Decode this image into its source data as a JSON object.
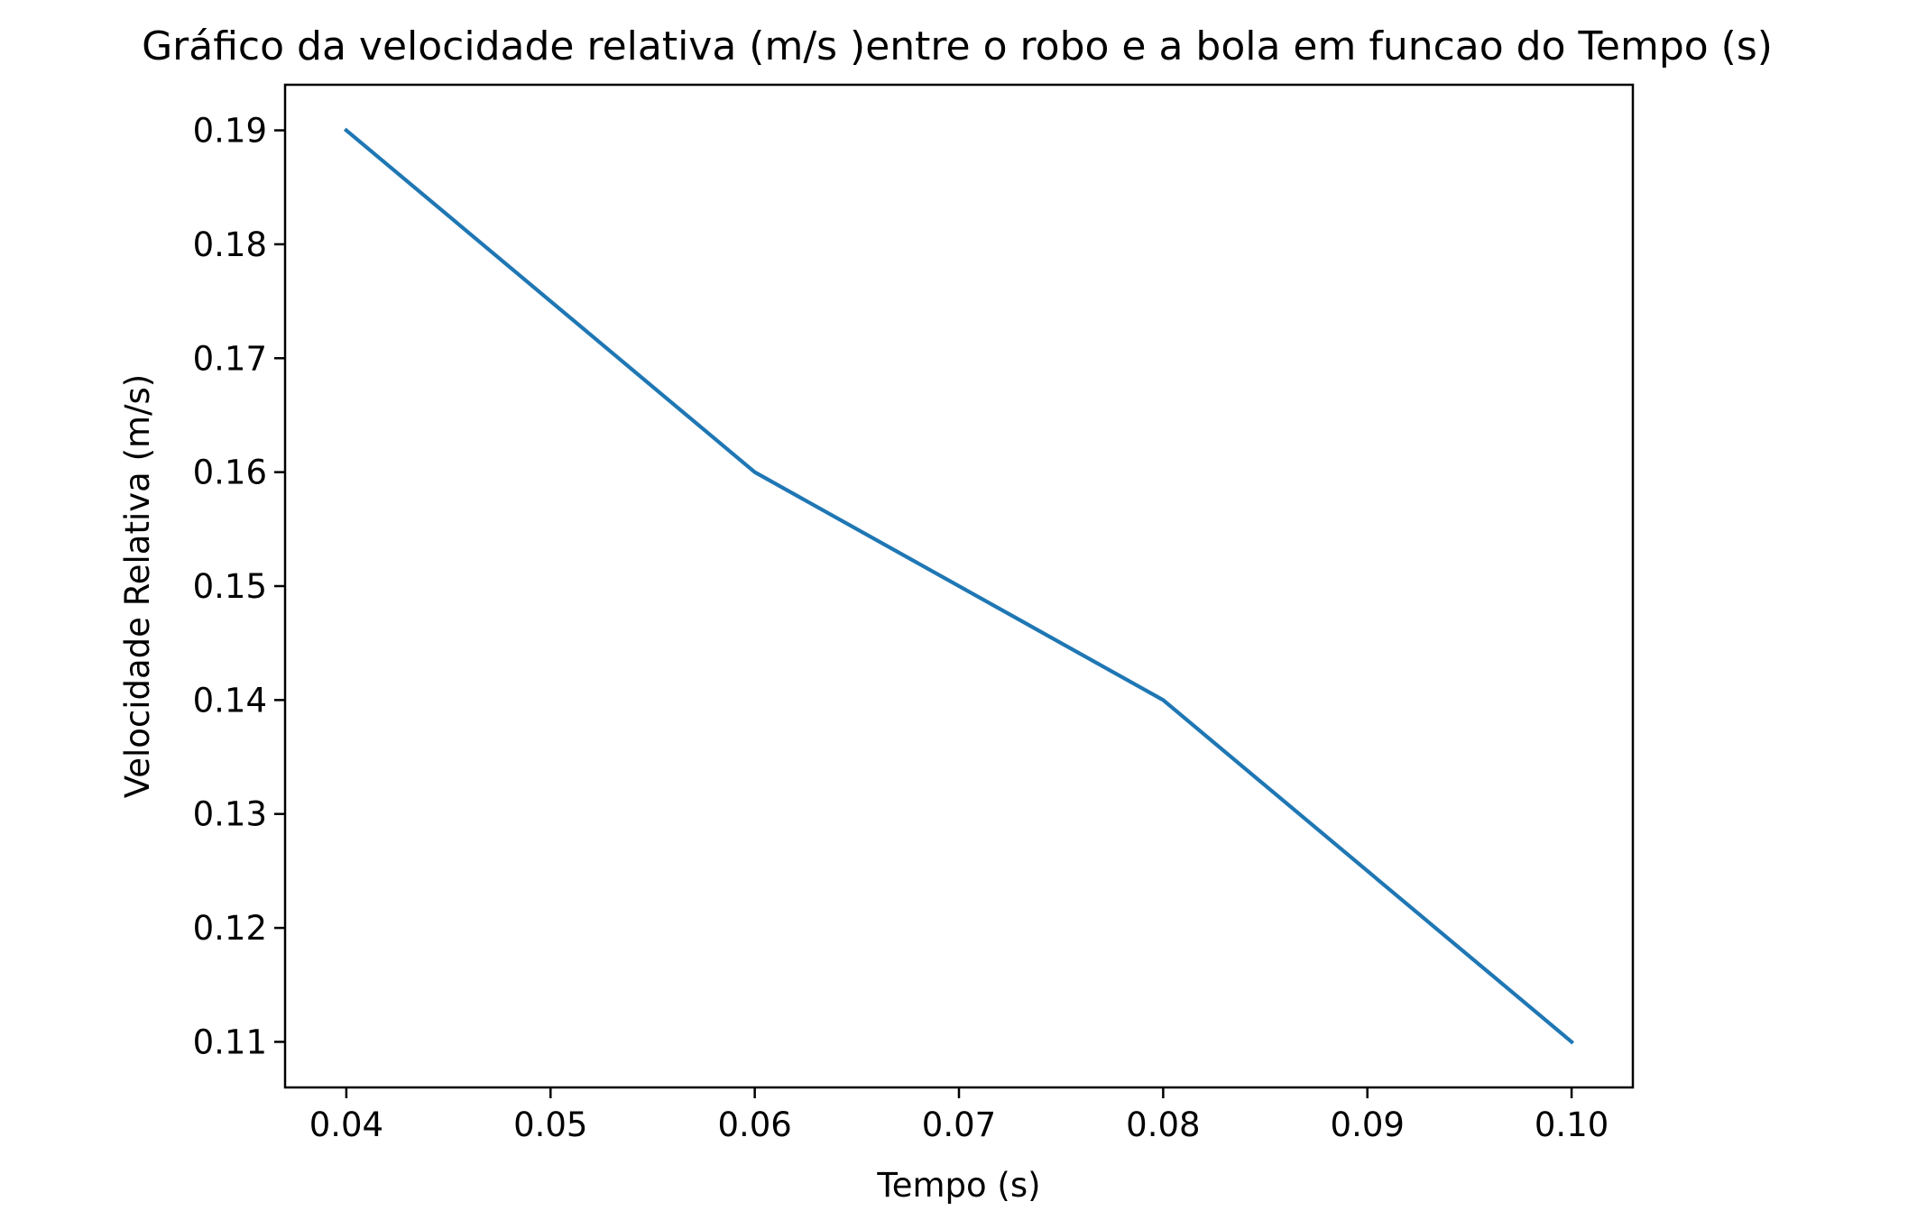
{
  "chart_data": {
    "type": "line",
    "title": "Gráfico da velocidade relativa (m/s )entre o robo e a bola em funcao do Tempo (s)",
    "xlabel": "Tempo (s)",
    "ylabel": "Velocidade Relativa (m/s)",
    "x": [
      0.04,
      0.06,
      0.08,
      0.1
    ],
    "series": [
      {
        "values": [
          0.19,
          0.16,
          0.14,
          0.11
        ],
        "color": "#1f77b4"
      }
    ],
    "xlim": [
      0.037,
      0.103
    ],
    "ylim": [
      0.106,
      0.194
    ],
    "x_ticks": [
      0.04,
      0.05,
      0.06,
      0.07,
      0.08,
      0.09,
      0.1
    ],
    "x_tick_labels": [
      "0.04",
      "0.05",
      "0.06",
      "0.07",
      "0.08",
      "0.09",
      "0.10"
    ],
    "y_ticks": [
      0.11,
      0.12,
      0.13,
      0.14,
      0.15,
      0.16,
      0.17,
      0.18,
      0.19
    ],
    "y_tick_labels": [
      "0.11",
      "0.12",
      "0.13",
      "0.14",
      "0.15",
      "0.16",
      "0.17",
      "0.18",
      "0.19"
    ],
    "grid": false,
    "legend": "none"
  }
}
